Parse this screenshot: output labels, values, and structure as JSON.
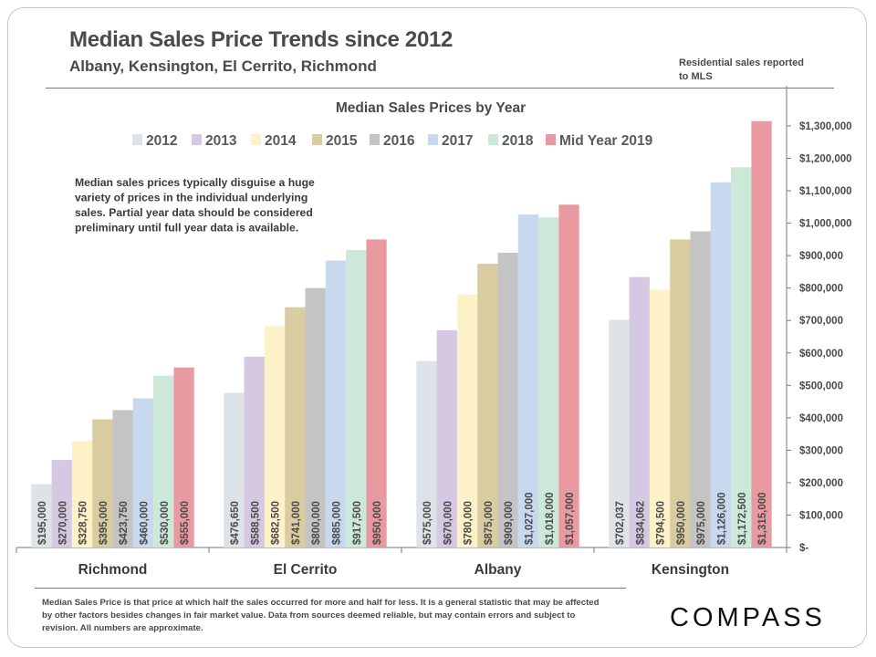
{
  "header": {
    "title": "Median Sales Price Trends since 2012",
    "subtitle": "Albany, Kensington,  El Cerrito, Richmond",
    "note": "Residential sales reported to MLS"
  },
  "annotation": "Median sales prices typically disguise a huge variety of prices in the individual underlying sales. Partial year data should be considered preliminary until full year data is available.",
  "footnote": "Median Sales Price is that price at which half the sales occurred for more and half for less. It is a general statistic that may be affected by other factors besides changes in fair market value. Data from sources deemed reliable, but may contain errors and subject to revision.  All numbers are approximate.",
  "logo": {
    "text": "COMPASS"
  },
  "chart_data": {
    "type": "bar",
    "title": "Median Sales Prices by Year",
    "xlabel": "",
    "ylabel": "",
    "ylim": [
      0,
      1300000
    ],
    "y_ticks": [
      {
        "value": 0,
        "label": "$-"
      },
      {
        "value": 100000,
        "label": "$100,000"
      },
      {
        "value": 200000,
        "label": "$200,000"
      },
      {
        "value": 300000,
        "label": "$300,000"
      },
      {
        "value": 400000,
        "label": "$400,000"
      },
      {
        "value": 500000,
        "label": "$500,000"
      },
      {
        "value": 600000,
        "label": "$600,000"
      },
      {
        "value": 700000,
        "label": "$700,000"
      },
      {
        "value": 800000,
        "label": "$800,000"
      },
      {
        "value": 900000,
        "label": "$900,000"
      },
      {
        "value": 1000000,
        "label": "$1,000,000"
      },
      {
        "value": 1100000,
        "label": "$1,100,000"
      },
      {
        "value": 1200000,
        "label": "$1,200,000"
      },
      {
        "value": 1300000,
        "label": "$1,300,000"
      }
    ],
    "grid": false,
    "legend_position": "top",
    "y_axis_side": "right",
    "categories": [
      "Richmond",
      "El Cerrito",
      "Albany",
      "Kensington"
    ],
    "series": [
      {
        "name": "2012",
        "color": "#dde3e6",
        "values": [
          195000,
          476650,
          575000,
          702037
        ],
        "labels": [
          "$195,000",
          "$476,650",
          "$575,000",
          "$702,037"
        ]
      },
      {
        "name": "2013",
        "color": "#d4c8e2",
        "values": [
          270000,
          588500,
          670000,
          834062
        ],
        "labels": [
          "$270,000",
          "$588,500",
          "$670,000",
          "$834,062"
        ]
      },
      {
        "name": "2014",
        "color": "#fdf1c8",
        "values": [
          328750,
          682500,
          780000,
          794500
        ],
        "labels": [
          "$328,750",
          "$682,500",
          "$780,000",
          "$794,500"
        ]
      },
      {
        "name": "2015",
        "color": "#d9cca0",
        "values": [
          395000,
          741000,
          875000,
          950000
        ],
        "labels": [
          "$395,000",
          "$741,000",
          "$875,000",
          "$950,000"
        ]
      },
      {
        "name": "2016",
        "color": "#c4c4c4",
        "values": [
          423750,
          800000,
          909000,
          975000
        ],
        "labels": [
          "$423,750",
          "$800,000",
          "$909,000",
          "$975,000"
        ]
      },
      {
        "name": "2017",
        "color": "#c8d8ef",
        "values": [
          460000,
          885000,
          1027000,
          1126000
        ],
        "labels": [
          "$460,000",
          "$885,000",
          "$1,027,000",
          "$1,126,000"
        ]
      },
      {
        "name": "2018",
        "color": "#cce8d8",
        "values": [
          530000,
          917500,
          1018000,
          1172500
        ],
        "labels": [
          "$530,000",
          "$917,500",
          "$1,018,000",
          "$1,172,500"
        ]
      },
      {
        "name": "Mid Year 2019",
        "color": "#e89aa0",
        "values": [
          555000,
          950000,
          1057000,
          1315000
        ],
        "labels": [
          "$555,000",
          "$950,000",
          "$1,057,000",
          "$1,315,000"
        ]
      }
    ]
  }
}
